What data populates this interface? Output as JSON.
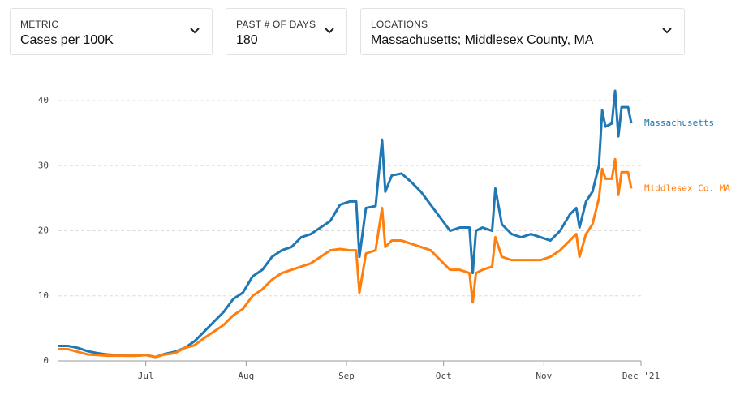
{
  "controls": [
    {
      "label": "METRIC",
      "value": "Cases per 100K"
    },
    {
      "label": "PAST # OF DAYS",
      "value": "180"
    },
    {
      "label": "LOCATIONS",
      "value": "Massachusetts; Middlesex County, MA"
    }
  ],
  "chart_data": {
    "type": "line",
    "x": [
      0,
      3,
      6,
      9,
      12,
      15,
      18,
      21,
      24,
      27,
      30,
      33,
      36,
      39,
      42,
      45,
      48,
      51,
      54,
      57,
      60,
      63,
      66,
      69,
      72,
      75,
      78,
      81,
      84,
      87,
      90,
      92,
      93,
      95,
      98,
      100,
      101,
      103,
      106,
      109,
      112,
      115,
      118,
      121,
      124,
      127,
      128,
      129,
      131,
      134,
      135,
      137,
      140,
      143,
      146,
      149,
      152,
      155,
      158,
      160,
      161,
      163,
      165,
      167,
      168,
      169,
      171,
      172,
      173,
      174,
      176,
      177
    ],
    "series": [
      {
        "name": "Massachusetts",
        "color": "#1f77b4",
        "values": [
          2.3,
          2.3,
          2.0,
          1.5,
          1.2,
          1.0,
          0.9,
          0.8,
          0.8,
          0.9,
          0.6,
          1.1,
          1.4,
          2.0,
          3.0,
          4.5,
          6.0,
          7.5,
          9.5,
          10.5,
          13.0,
          14.0,
          16.0,
          17.0,
          17.5,
          19.0,
          19.5,
          20.5,
          21.5,
          24.0,
          24.5,
          24.5,
          16.0,
          23.5,
          23.8,
          34.0,
          26.0,
          28.5,
          28.8,
          27.5,
          26.0,
          24.0,
          22.0,
          20.0,
          20.5,
          20.5,
          13.5,
          20.0,
          20.5,
          20.0,
          26.5,
          21.0,
          19.5,
          19.0,
          19.5,
          19.0,
          18.5,
          20.0,
          22.5,
          23.5,
          20.5,
          24.5,
          26.0,
          30.0,
          38.5,
          36.0,
          36.5,
          41.5,
          34.5,
          39.0,
          39.0,
          36.5
        ]
      },
      {
        "name": "Middlesex Co. MA",
        "color": "#ff7f0e",
        "values": [
          1.8,
          1.8,
          1.4,
          1.0,
          0.9,
          0.8,
          0.8,
          0.8,
          0.8,
          0.9,
          0.6,
          1.0,
          1.2,
          2.0,
          2.4,
          3.5,
          4.5,
          5.5,
          7.0,
          8.0,
          10.0,
          11.0,
          12.5,
          13.5,
          14.0,
          14.5,
          15.0,
          16.0,
          17.0,
          17.2,
          17.0,
          17.0,
          10.5,
          16.5,
          17.0,
          23.5,
          17.5,
          18.5,
          18.5,
          18.0,
          17.5,
          17.0,
          15.5,
          14.0,
          14.0,
          13.5,
          9.0,
          13.5,
          14.0,
          14.5,
          19.0,
          16.0,
          15.5,
          15.5,
          15.5,
          15.5,
          16.0,
          17.0,
          18.5,
          19.5,
          16.0,
          19.5,
          21.0,
          25.0,
          29.5,
          28.0,
          28.0,
          31.0,
          25.5,
          29.0,
          29.0,
          26.5
        ]
      }
    ],
    "xlim": [
      0,
      180
    ],
    "xticks": [
      {
        "value": 27,
        "label": "Jul"
      },
      {
        "value": 58,
        "label": "Aug"
      },
      {
        "value": 89,
        "label": "Sep"
      },
      {
        "value": 119,
        "label": "Oct"
      },
      {
        "value": 150,
        "label": "Nov"
      },
      {
        "value": 180,
        "label": "Dec '21"
      }
    ],
    "ylim": [
      0,
      42
    ],
    "yticks": [
      0,
      10,
      20,
      30,
      40
    ],
    "grid": true
  }
}
